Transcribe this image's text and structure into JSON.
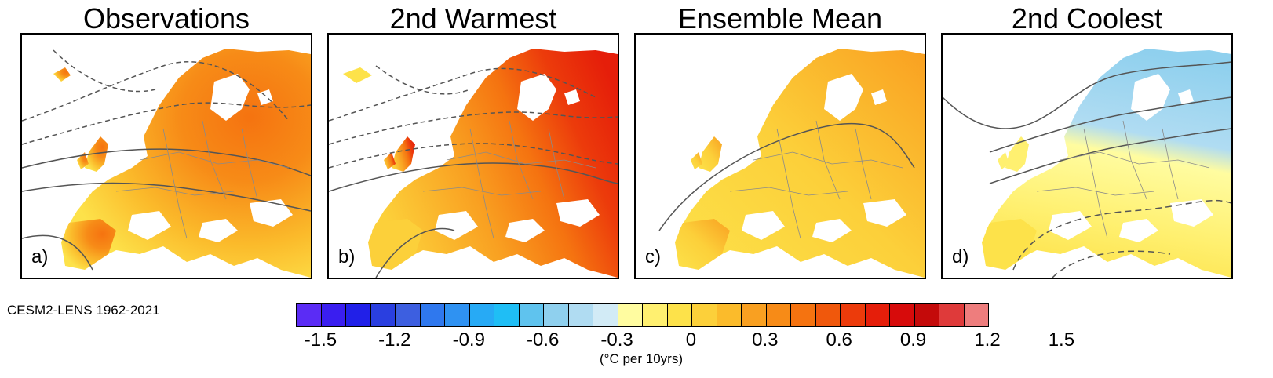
{
  "panels": [
    {
      "title": "Observations",
      "label": "a)",
      "scheme": "obs"
    },
    {
      "title": "2nd Warmest",
      "label": "b)",
      "scheme": "warm"
    },
    {
      "title": "Ensemble Mean",
      "label": "c)",
      "scheme": "mean"
    },
    {
      "title": "2nd Coolest",
      "label": "d)",
      "scheme": "cool"
    }
  ],
  "source": "CESM2-LENS 1962-2021",
  "colorbar": {
    "colors": [
      "#5b2cf5",
      "#3a1ef0",
      "#2120e8",
      "#2a3fe0",
      "#3d5fe0",
      "#2f78ee",
      "#2f92f2",
      "#27aaf5",
      "#1fbef5",
      "#5fc3ee",
      "#8fd0ee",
      "#b0dcf2",
      "#d2ebf6",
      "#fffca0",
      "#fff070",
      "#fde24a",
      "#fcd03a",
      "#fbbb2b",
      "#f9a021",
      "#f78b17",
      "#f57310",
      "#f0580c",
      "#ec3b0b",
      "#e51e0a",
      "#d70b0b",
      "#c40a0a",
      "#df3a3a",
      "#ee7d7d"
    ],
    "ticks": [
      "-1.5",
      "-1.2",
      "-0.9",
      "-0.6",
      "-0.3",
      "0",
      "0.3",
      "0.6",
      "0.9",
      "1.2",
      "1.5"
    ],
    "units": "(°C per 10yrs)"
  }
}
